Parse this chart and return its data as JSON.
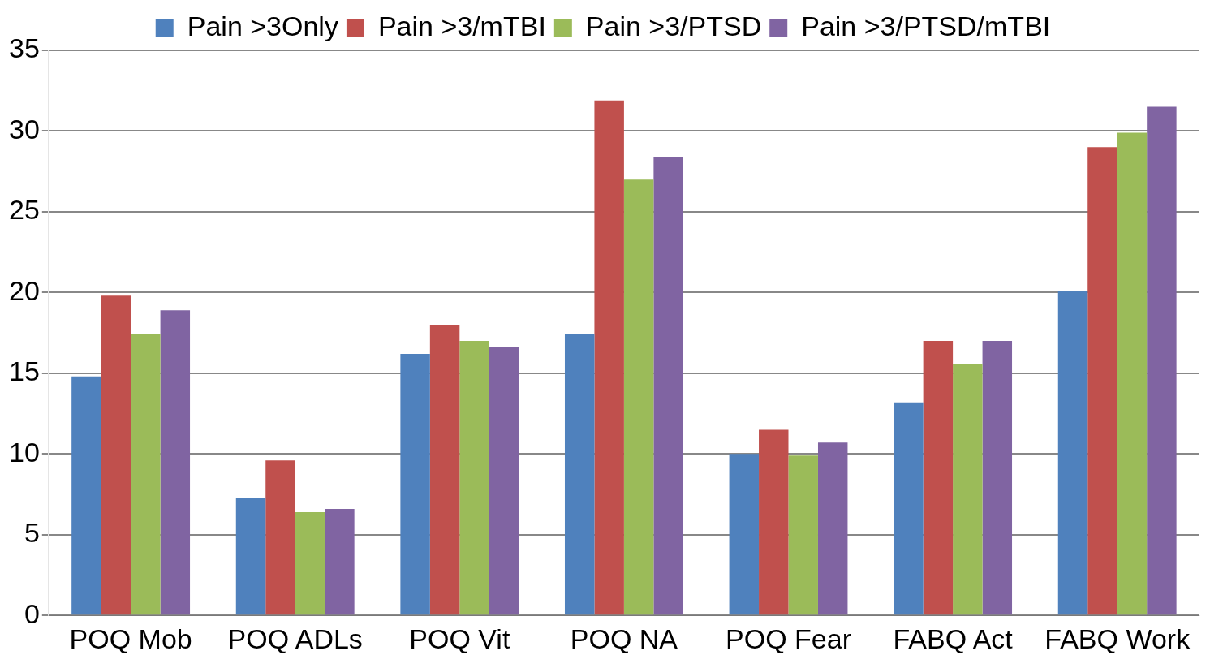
{
  "chart_data": {
    "type": "bar",
    "categories": [
      "POQ Mob",
      "POQ ADLs",
      "POQ Vit",
      "POQ NA",
      "POQ Fear",
      "FABQ Act",
      "FABQ Work"
    ],
    "series": [
      {
        "name": "Pain >3Only",
        "color": "#4f81bd",
        "values": [
          14.8,
          7.3,
          16.2,
          17.4,
          10,
          13.2,
          20.1
        ]
      },
      {
        "name": "Pain >3/mTBI",
        "color": "#c0504d",
        "values": [
          19.8,
          9.6,
          18,
          31.9,
          11.5,
          17,
          29
        ]
      },
      {
        "name": "Pain >3/PTSD",
        "color": "#9bbb59",
        "values": [
          17.4,
          6.4,
          17,
          27,
          9.9,
          15.6,
          29.9
        ]
      },
      {
        "name": "Pain >3/PTSD/mTBI",
        "color": "#8064a2",
        "values": [
          18.9,
          6.6,
          16.6,
          28.4,
          10.7,
          17,
          31.5
        ]
      }
    ],
    "ylim": [
      0,
      35
    ],
    "yticks": [
      0,
      5,
      10,
      15,
      20,
      25,
      30,
      35
    ],
    "grid": "y",
    "legend": "top"
  }
}
